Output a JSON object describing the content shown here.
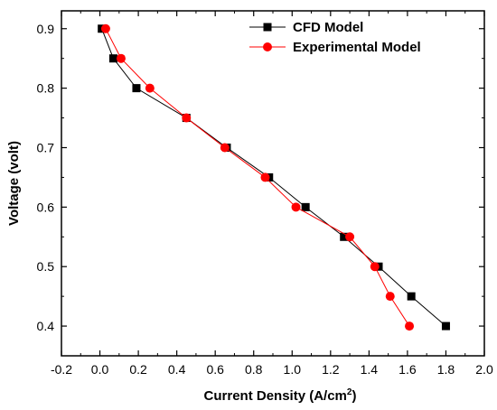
{
  "chart_data": {
    "type": "line",
    "title": "",
    "xlabel": "Current Density (A/cm",
    "xlabel_sup": "2",
    "xlabel_close": ")",
    "ylabel": "Voltage (volt)",
    "xlim": [
      -0.2,
      2.0
    ],
    "ylim": [
      0.35,
      0.93
    ],
    "xticks": [
      -0.2,
      0.0,
      0.2,
      0.4,
      0.6,
      0.8,
      1.0,
      1.2,
      1.4,
      1.6,
      1.8,
      2.0
    ],
    "xtick_labels": [
      "-0.2",
      "0.0",
      "0.2",
      "0.4",
      "0.6",
      "0.8",
      "1.0",
      "1.2",
      "1.4",
      "1.6",
      "1.8",
      "2.0"
    ],
    "yticks": [
      0.4,
      0.5,
      0.6,
      0.7,
      0.8,
      0.9
    ],
    "ytick_labels": [
      "0.4",
      "0.5",
      "0.6",
      "0.7",
      "0.8",
      "0.9"
    ],
    "grid": false,
    "legend_position": "top-right",
    "series": [
      {
        "name": "CFD Model",
        "color": "#000000",
        "line_color": "#000000",
        "marker": "square",
        "x": [
          0.01,
          0.07,
          0.19,
          0.45,
          0.66,
          0.88,
          1.07,
          1.27,
          1.45,
          1.62,
          1.8
        ],
        "y": [
          0.9,
          0.85,
          0.8,
          0.75,
          0.7,
          0.65,
          0.6,
          0.55,
          0.5,
          0.45,
          0.4
        ]
      },
      {
        "name": "Experimental Model",
        "color": "#ff0000",
        "line_color": "#ff0000",
        "marker": "circle",
        "x": [
          0.03,
          0.11,
          0.26,
          0.45,
          0.65,
          0.86,
          1.02,
          1.3,
          1.43,
          1.51,
          1.61
        ],
        "y": [
          0.9,
          0.85,
          0.8,
          0.75,
          0.7,
          0.65,
          0.6,
          0.55,
          0.5,
          0.45,
          0.4
        ]
      }
    ]
  }
}
